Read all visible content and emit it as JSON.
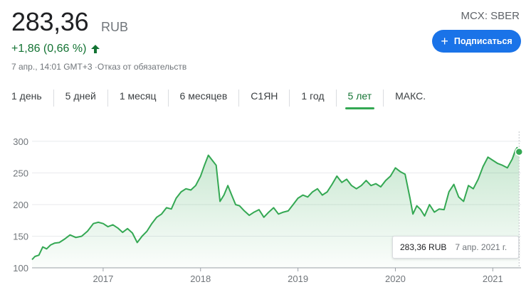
{
  "quote": {
    "price": "283,36",
    "currency": "RUB",
    "change": "+1,86 (0,66 %)",
    "meta": "7 апр., 14:01 GMT+3 ·Отказ от обязательств",
    "exchange": "MCX: SBER",
    "subscribe_label": "Подписаться"
  },
  "colors": {
    "accent": "#1a73e8",
    "positive": "#137333",
    "line": "#34a853"
  },
  "tabs": [
    {
      "label": "1 день"
    },
    {
      "label": "5 дней"
    },
    {
      "label": "1 месяц"
    },
    {
      "label": "6 месяцев"
    },
    {
      "label": "С1ЯН"
    },
    {
      "label": "1 год"
    },
    {
      "label": "5 лет",
      "active": true
    },
    {
      "label": "МАКС."
    }
  ],
  "tooltip": {
    "value": "283,36 RUB",
    "date": "7 апр. 2021 г."
  },
  "chart_data": {
    "type": "area",
    "x_tick_labels": [
      "2017",
      "2018",
      "2019",
      "2020",
      "2021"
    ],
    "y_tick_labels": [
      "300",
      "250",
      "200",
      "150",
      "100"
    ],
    "ylim": [
      100,
      310
    ],
    "xlim": [
      2016.27,
      2021.29
    ],
    "y_ticks": [
      300,
      250,
      200,
      150,
      100
    ],
    "x_ticks": [
      2017,
      2018,
      2019,
      2020,
      2021
    ],
    "grid": true,
    "x": [
      2016.27,
      2016.3,
      2016.34,
      2016.38,
      2016.42,
      2016.46,
      2016.5,
      2016.55,
      2016.6,
      2016.66,
      2016.72,
      2016.78,
      2016.84,
      2016.9,
      2016.95,
      2017.0,
      2017.05,
      2017.1,
      2017.15,
      2017.2,
      2017.25,
      2017.3,
      2017.35,
      2017.4,
      2017.45,
      2017.5,
      2017.55,
      2017.6,
      2017.65,
      2017.7,
      2017.75,
      2017.8,
      2017.85,
      2017.9,
      2017.95,
      2018.0,
      2018.04,
      2018.08,
      2018.12,
      2018.16,
      2018.2,
      2018.24,
      2018.28,
      2018.32,
      2018.36,
      2018.4,
      2018.45,
      2018.5,
      2018.55,
      2018.6,
      2018.65,
      2018.7,
      2018.75,
      2018.8,
      2018.85,
      2018.9,
      2018.95,
      2019.0,
      2019.05,
      2019.1,
      2019.15,
      2019.2,
      2019.25,
      2019.3,
      2019.35,
      2019.4,
      2019.45,
      2019.5,
      2019.55,
      2019.6,
      2019.65,
      2019.7,
      2019.75,
      2019.8,
      2019.85,
      2019.9,
      2019.95,
      2020.0,
      2020.05,
      2020.1,
      2020.15,
      2020.18,
      2020.22,
      2020.26,
      2020.3,
      2020.35,
      2020.4,
      2020.45,
      2020.5,
      2020.55,
      2020.6,
      2020.65,
      2020.7,
      2020.75,
      2020.8,
      2020.85,
      2020.9,
      2020.95,
      2021.0,
      2021.05,
      2021.1,
      2021.15,
      2021.2,
      2021.23,
      2021.25,
      2021.27
    ],
    "values": [
      113,
      118,
      120,
      133,
      130,
      136,
      139,
      140,
      145,
      152,
      148,
      150,
      158,
      170,
      172,
      170,
      165,
      168,
      163,
      156,
      162,
      155,
      140,
      150,
      158,
      170,
      180,
      185,
      195,
      193,
      210,
      220,
      225,
      223,
      230,
      245,
      262,
      278,
      270,
      262,
      205,
      215,
      230,
      215,
      200,
      198,
      190,
      183,
      188,
      192,
      180,
      188,
      195,
      185,
      188,
      190,
      200,
      210,
      215,
      212,
      220,
      225,
      215,
      220,
      232,
      245,
      235,
      240,
      230,
      225,
      230,
      238,
      230,
      233,
      228,
      238,
      245,
      258,
      252,
      248,
      210,
      185,
      198,
      192,
      182,
      200,
      188,
      193,
      192,
      220,
      232,
      212,
      205,
      230,
      225,
      240,
      260,
      275,
      270,
      265,
      262,
      258,
      272,
      285,
      290,
      283.36
    ]
  }
}
